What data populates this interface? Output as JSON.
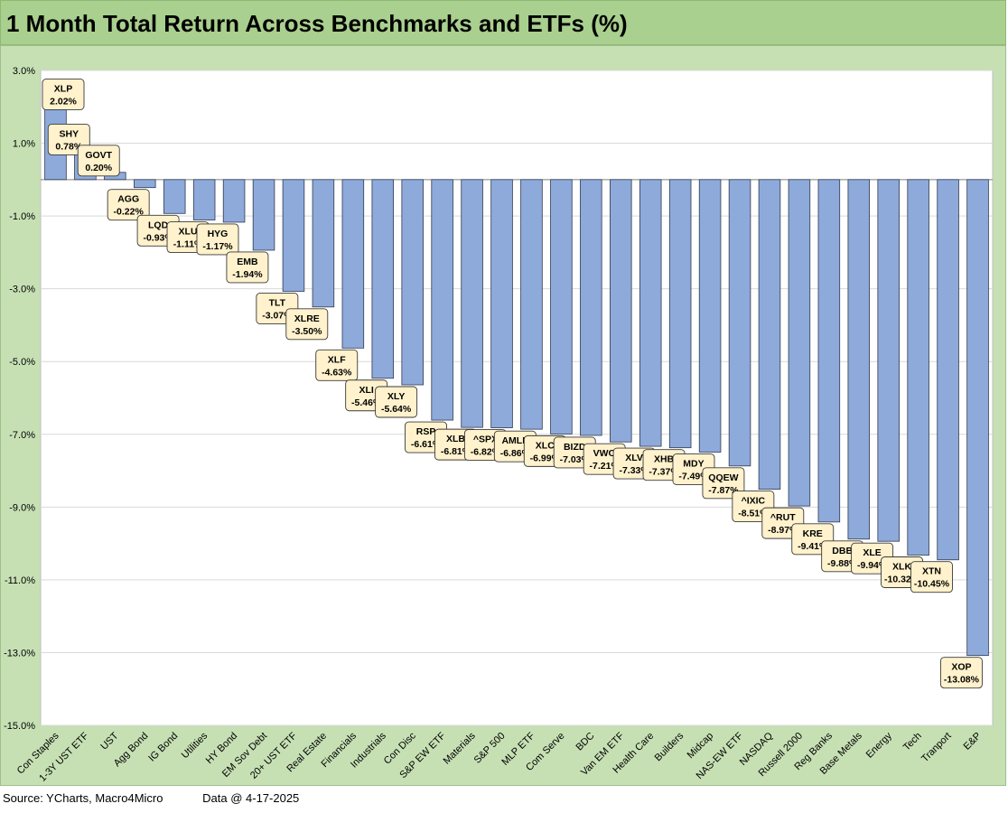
{
  "title": "1 Month Total Return Across Benchmarks and ETFs (%)",
  "footer": {
    "source": "Source: YCharts, Macro4Micro",
    "data_date": "Data @ 4-17-2025"
  },
  "colors": {
    "bar": "#8eaadb",
    "bar_stroke": "#2f3a4f",
    "label_fill": "#fff2cc",
    "label_stroke": "#3a3a3a",
    "title_bg": "#a9d08e",
    "panel_bg": "#c6e0b4",
    "plot_bg": "#ffffff",
    "grid": "#d9d9d9"
  },
  "chart_data": {
    "type": "bar",
    "title": "1 Month Total Return Across Benchmarks and ETFs (%)",
    "xlabel": "",
    "ylabel": "",
    "ylim": [
      -15,
      3
    ],
    "y_ticks": [
      3,
      1,
      -1,
      -3,
      -5,
      -7,
      -9,
      -11,
      -13,
      -15
    ],
    "y_tick_labels": [
      "3.0%",
      "1.0%",
      "-1.0%",
      "-3.0%",
      "-5.0%",
      "-7.0%",
      "-9.0%",
      "-11.0%",
      "-13.0%",
      "-15.0%"
    ],
    "grid": true,
    "categories": [
      "Con Staples",
      "1-3Y UST ETF",
      "UST",
      "Agg Bond",
      "IG Bond",
      "Utilities",
      "HY Bond",
      "EM Sov Debt",
      "20+ UST ETF",
      "Real Estate",
      "Financials",
      "Industrials",
      "Con Disc",
      "S&P EW ETF",
      "Materials",
      "S&P 500",
      "MLP ETF",
      "Com Serve",
      "BDC",
      "Van EM ETF",
      "Health Care",
      "Builders",
      "Midcap",
      "NAS-EW ETF",
      "NASDAQ",
      "Russell 2000",
      "Reg Banks",
      "Base Metals",
      "Energy",
      "Tech",
      "Tranport",
      "E&P"
    ],
    "values": [
      2.02,
      0.78,
      0.2,
      -0.22,
      -0.93,
      -1.11,
      -1.17,
      -1.94,
      -3.07,
      -3.5,
      -4.63,
      -5.46,
      -5.64,
      -6.61,
      -6.81,
      -6.82,
      -6.86,
      -6.99,
      -7.03,
      -7.21,
      -7.33,
      -7.37,
      -7.49,
      -7.87,
      -8.51,
      -8.97,
      -9.41,
      -9.88,
      -9.94,
      -10.32,
      -10.45,
      -13.08
    ],
    "tickers": [
      "XLP",
      "SHY",
      "GOVT",
      "AGG",
      "LQD",
      "XLU",
      "HYG",
      "EMB",
      "TLT",
      "XLRE",
      "XLF",
      "XLI",
      "XLY",
      "RSP",
      "XLB",
      "^SPX",
      "AMLP",
      "XLC",
      "BIZD",
      "VWO",
      "XLV",
      "XHB",
      "MDY",
      "QQEW",
      "^IXIC",
      "^RUT",
      "KRE",
      "DBB",
      "XLE",
      "XLK",
      "XTN",
      "XOP"
    ],
    "data_labels": [
      "2.02%",
      "0.78%",
      "0.20%",
      "-0.22%",
      "-0.93%",
      "-1.11%",
      "-1.17%",
      "-1.94%",
      "-3.07%",
      "-3.50%",
      "-4.63%",
      "-5.46%",
      "-5.64%",
      "-6.61%",
      "-6.81%",
      "-6.82%",
      "-6.86%",
      "-6.99%",
      "-7.03%",
      "-7.21%",
      "-7.33%",
      "-7.37%",
      "-7.49%",
      "-7.87%",
      "-8.51%",
      "-8.97%",
      "-9.41%",
      "-9.88%",
      "-9.94%",
      "-10.32%",
      "-10.45%",
      "-13.08%"
    ]
  }
}
